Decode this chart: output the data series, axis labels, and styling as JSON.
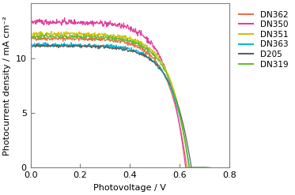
{
  "title": "",
  "xlabel": "Photovoltage / V",
  "ylabel": "Photocurrent density / mA cm⁻²",
  "xlim": [
    0,
    0.8
  ],
  "ylim": [
    0,
    15
  ],
  "yticks": [
    0,
    5,
    10
  ],
  "xticks": [
    0,
    0.2,
    0.4,
    0.6,
    0.8
  ],
  "series": [
    {
      "label": "DN362",
      "color": "#e8704a",
      "jsc": 11.8,
      "voc": 0.63,
      "n_ideality": 2.8,
      "noise": 0.1
    },
    {
      "label": "DN350",
      "color": "#e040a0",
      "jsc": 13.3,
      "voc": 0.625,
      "n_ideality": 2.8,
      "noise": 0.13
    },
    {
      "label": "DN351",
      "color": "#d4c000",
      "jsc": 12.2,
      "voc": 0.64,
      "n_ideality": 2.8,
      "noise": 0.1
    },
    {
      "label": "DN363",
      "color": "#00bcd4",
      "jsc": 11.2,
      "voc": 0.64,
      "n_ideality": 2.8,
      "noise": 0.09
    },
    {
      "label": "D205",
      "color": "#606060",
      "jsc": 11.1,
      "voc": 0.648,
      "n_ideality": 2.9,
      "noise": 0.07
    },
    {
      "label": "DN319",
      "color": "#60c030",
      "jsc": 12.0,
      "voc": 0.638,
      "n_ideality": 2.8,
      "noise": 0.09
    }
  ],
  "figsize": [
    3.73,
    2.47
  ],
  "dpi": 100
}
